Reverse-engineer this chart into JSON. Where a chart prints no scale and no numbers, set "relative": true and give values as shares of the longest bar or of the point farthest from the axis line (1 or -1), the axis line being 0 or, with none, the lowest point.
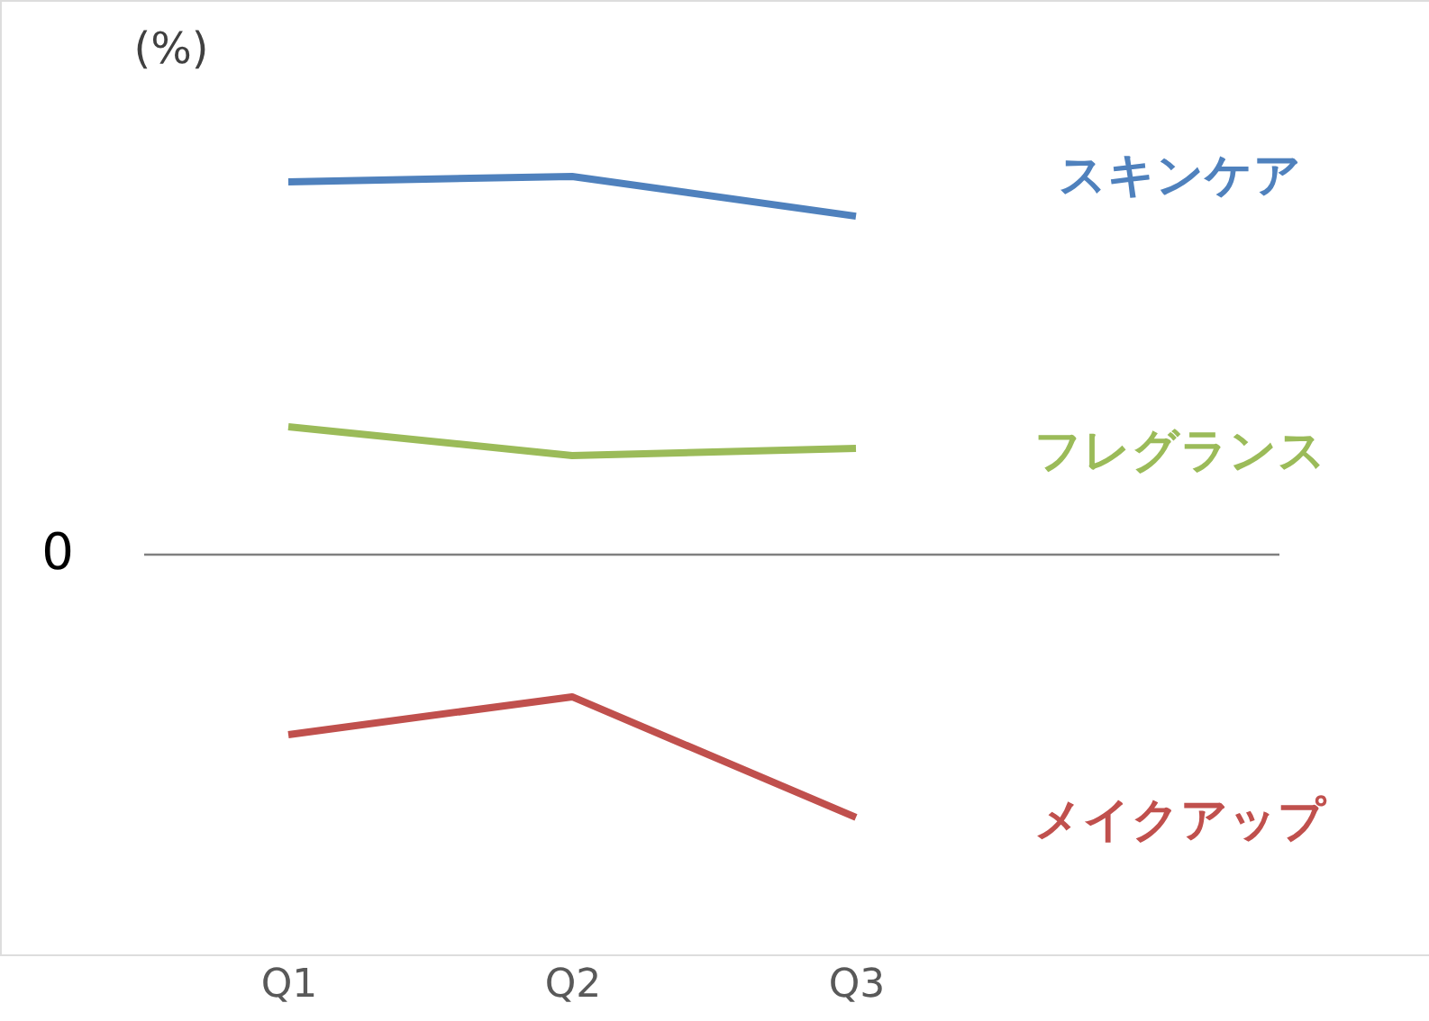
{
  "chart_data": {
    "type": "line",
    "relative": true,
    "ylabel": "(%)",
    "categories": [
      "Q1",
      "Q2",
      "Q3"
    ],
    "series": [
      {
        "name": "スキンケア",
        "color": "#4f81bd",
        "values": [
          0.986,
          1,
          0.895
        ]
      },
      {
        "name": "フレグランス",
        "color": "#9bbb59",
        "values": [
          0.338,
          0.262,
          0.281
        ]
      },
      {
        "name": "メイクアップ",
        "color": "#c0504d",
        "values": [
          -0.476,
          -0.376,
          -0.695
        ]
      }
    ],
    "ref_lines": [
      {
        "axis": "y",
        "value": 0,
        "label": "0",
        "color": "#808080"
      }
    ],
    "grid": false,
    "marker": "none",
    "line_style": "solid"
  }
}
